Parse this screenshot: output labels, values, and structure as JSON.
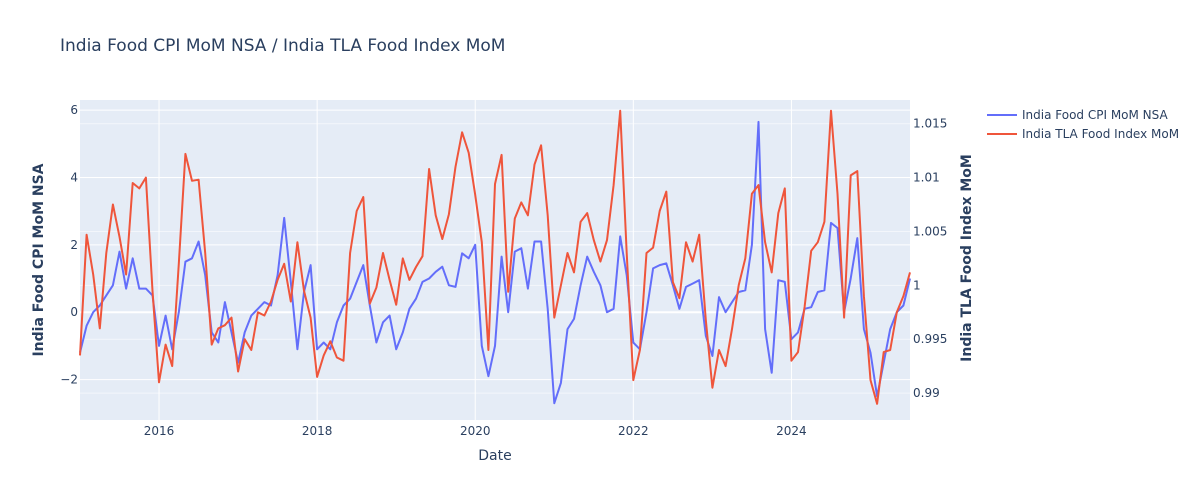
{
  "chart_data": {
    "type": "line",
    "title": "India Food CPI MoM NSA / India TLA Food Index MoM",
    "xlabel": "Date",
    "ylabel_left": "India Food CPI MoM NSA",
    "ylabel_right": "India TLA Food Index MoM",
    "x_ticks": [
      "2016",
      "2018",
      "2020",
      "2022",
      "2024"
    ],
    "y_left_ticks": [
      "−2",
      "0",
      "2",
      "4",
      "6"
    ],
    "y_right_ticks": [
      "0.995",
      "1",
      "1.005",
      "1.01",
      "1.015",
      "0.99"
    ],
    "x_range": [
      "2015-01-01",
      "2025-07-01"
    ],
    "y_left_range": [
      -3.2,
      6.3
    ],
    "y_right_range": [
      0.9875,
      1.0172
    ],
    "grid": true,
    "legend_position": "top-right",
    "colors": {
      "plot_bg": "#e5ecf6",
      "series_1": "#636efa",
      "series_2": "#ef553b",
      "text": "#2a3f5f",
      "grid": "#ffffff"
    },
    "series": [
      {
        "name": "India Food CPI MoM NSA",
        "axis": "left",
        "start": "2015-01",
        "values": [
          -1.2,
          -0.4,
          0.0,
          0.2,
          0.5,
          0.8,
          1.8,
          0.7,
          1.6,
          0.7,
          0.7,
          0.5,
          -1.0,
          -0.1,
          -1.1,
          0.0,
          1.5,
          1.6,
          2.1,
          1.1,
          -0.6,
          -0.9,
          0.3,
          -0.6,
          -1.5,
          -0.6,
          -0.1,
          0.1,
          0.3,
          0.2,
          1.1,
          2.8,
          0.9,
          -1.1,
          0.6,
          1.4,
          -1.1,
          -0.9,
          -1.1,
          -0.3,
          0.2,
          0.4,
          0.9,
          1.4,
          0.2,
          -0.9,
          -0.3,
          -0.1,
          -1.1,
          -0.6,
          0.1,
          0.4,
          0.9,
          1.0,
          1.2,
          1.35,
          0.8,
          0.75,
          1.75,
          1.6,
          2.0,
          -1.0,
          -1.9,
          -1.0,
          1.65,
          0.0,
          1.8,
          1.9,
          0.7,
          2.1,
          2.1,
          0.1,
          -2.7,
          -2.1,
          -0.5,
          -0.2,
          0.8,
          1.65,
          1.2,
          0.8,
          0.0,
          0.1,
          2.25,
          1.1,
          -0.9,
          -1.1,
          0.0,
          1.3,
          1.4,
          1.45,
          0.8,
          0.1,
          0.75,
          0.85,
          0.95,
          -0.7,
          -1.3,
          0.45,
          0.0,
          0.3,
          0.6,
          0.65,
          2.0,
          5.65,
          -0.5,
          -1.8,
          0.95,
          0.9,
          -0.8,
          -0.6,
          0.1,
          0.15,
          0.6,
          0.65,
          2.65,
          2.5,
          0.0,
          1.0,
          2.2,
          -0.5,
          -1.2,
          -2.5,
          -1.5,
          -0.5,
          0.0,
          0.2,
          1.0
        ]
      },
      {
        "name": "India TLA Food Index MoM",
        "axis": "right",
        "start": "2015-01",
        "values": [
          0.9935,
          1.0047,
          1.001,
          0.996,
          1.003,
          1.0075,
          1.0045,
          1.001,
          1.0095,
          1.009,
          1.01,
          0.9995,
          0.991,
          0.9945,
          0.9925,
          1.002,
          1.0122,
          1.0097,
          1.0098,
          1.003,
          0.9945,
          0.996,
          0.9963,
          0.997,
          0.992,
          0.995,
          0.994,
          0.9975,
          0.9972,
          0.9985,
          1.0005,
          1.002,
          0.9985,
          1.004,
          0.9995,
          0.997,
          0.9915,
          0.9935,
          0.9948,
          0.9933,
          0.993,
          1.003,
          1.0069,
          1.0082,
          0.9983,
          0.9998,
          1.003,
          1.0005,
          0.9982,
          1.0025,
          1.0005,
          1.0017,
          1.0027,
          1.0108,
          1.0065,
          1.0043,
          1.0066,
          1.011,
          1.0142,
          1.0123,
          1.0084,
          1.004,
          0.994,
          1.0094,
          1.0121,
          0.9994,
          1.0062,
          1.0077,
          1.0065,
          1.0112,
          1.013,
          1.0065,
          0.997,
          1.0,
          1.003,
          1.0012,
          1.0059,
          1.0067,
          1.0042,
          1.0022,
          1.0042,
          1.0093,
          1.0162,
          1.003,
          0.9912,
          0.994,
          1.003,
          1.0035,
          1.0069,
          1.0087,
          1.0003,
          0.9988,
          1.004,
          1.0022,
          1.0047,
          0.9968,
          0.9905,
          0.994,
          0.9925,
          0.996,
          1.0,
          1.0025,
          1.0085,
          1.0093,
          1.004,
          1.0012,
          1.0067,
          1.009,
          0.993,
          0.9938,
          0.998,
          1.0032,
          1.004,
          1.0059,
          1.0162,
          1.0085,
          0.997,
          1.0102,
          1.0106,
          0.999,
          0.9912,
          0.989,
          0.9938,
          0.994,
          0.9975,
          0.999,
          1.0012
        ]
      }
    ]
  }
}
